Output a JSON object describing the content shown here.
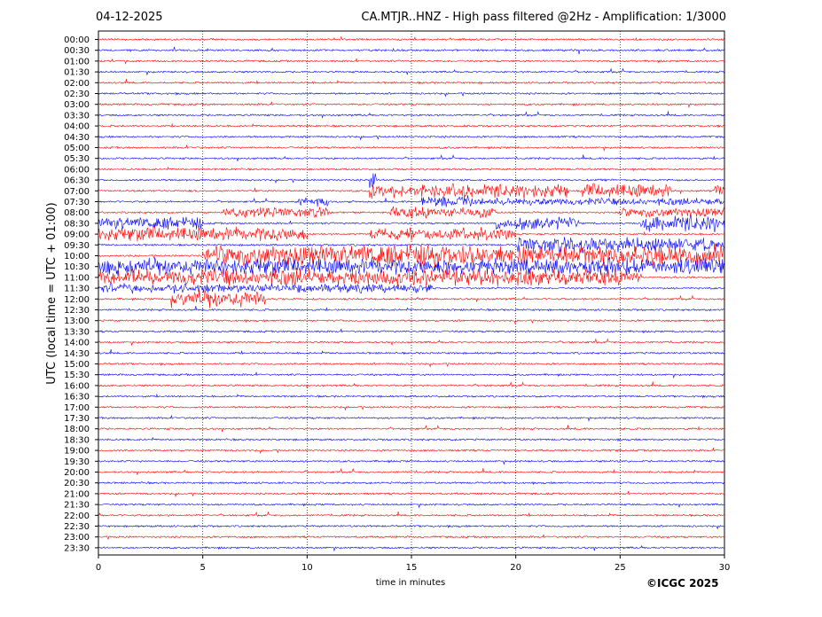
{
  "header": {
    "date": "04-12-2025",
    "title": "CA.MTJR..HNZ - High pass filtered @2Hz - Amplification: 1/3000"
  },
  "footer": {
    "copyright": "©ICGC 2025"
  },
  "colors": {
    "red": "#ff0000",
    "blue": "#0000ff",
    "grid": "#000000"
  },
  "chart_data": {
    "type": "line",
    "xlabel": "time in minutes",
    "ylabel": "UTC (local time = UTC + 01:00)",
    "xlim": [
      0,
      30
    ],
    "xticks": [
      0,
      5,
      10,
      15,
      20,
      25,
      30
    ],
    "grid": "vertical dotted at 5, 10, 15, 20, 25",
    "row_labels": [
      "00:00",
      "00:30",
      "01:00",
      "01:30",
      "02:00",
      "02:30",
      "03:00",
      "03:30",
      "04:00",
      "04:30",
      "05:00",
      "05:30",
      "06:00",
      "06:30",
      "07:00",
      "07:30",
      "08:00",
      "08:30",
      "09:00",
      "09:30",
      "10:00",
      "10:30",
      "11:00",
      "11:30",
      "12:00",
      "12:30",
      "13:00",
      "13:30",
      "14:00",
      "14:30",
      "15:00",
      "15:30",
      "16:00",
      "16:30",
      "17:00",
      "17:30",
      "18:00",
      "18:30",
      "19:00",
      "19:30",
      "20:00",
      "20:30",
      "21:00",
      "21:30",
      "22:00",
      "22:30",
      "23:00",
      "23:30"
    ],
    "row_colors": [
      "red",
      "blue"
    ],
    "amplitude_segments": [
      {
        "row": "06:30",
        "start": 13.0,
        "end": 13.3,
        "level": 0.9
      },
      {
        "row": "07:00",
        "start": 13.0,
        "end": 22.5,
        "level": 0.6
      },
      {
        "row": "07:00",
        "start": 23.2,
        "end": 27.4,
        "level": 0.6
      },
      {
        "row": "07:00",
        "start": 29.5,
        "end": 30.0,
        "level": 0.5
      },
      {
        "row": "07:30",
        "start": 9.5,
        "end": 11.0,
        "level": 0.4
      },
      {
        "row": "07:30",
        "start": 15.5,
        "end": 18.0,
        "level": 0.5
      },
      {
        "row": "07:30",
        "start": 18.0,
        "end": 30.0,
        "level": 0.3
      },
      {
        "row": "08:00",
        "start": 6.0,
        "end": 11.0,
        "level": 0.4
      },
      {
        "row": "08:00",
        "start": 14.0,
        "end": 19.0,
        "level": 0.5
      },
      {
        "row": "08:00",
        "start": 25.0,
        "end": 30.0,
        "level": 0.4
      },
      {
        "row": "08:30",
        "start": 0.0,
        "end": 5.0,
        "level": 0.5
      },
      {
        "row": "08:30",
        "start": 19.0,
        "end": 23.0,
        "level": 0.5
      },
      {
        "row": "08:30",
        "start": 26.0,
        "end": 30.0,
        "level": 0.7
      },
      {
        "row": "09:00",
        "start": 0.0,
        "end": 10.0,
        "level": 0.6
      },
      {
        "row": "09:00",
        "start": 13.0,
        "end": 20.0,
        "level": 0.5
      },
      {
        "row": "09:30",
        "start": 20.0,
        "end": 30.0,
        "level": 0.6
      },
      {
        "row": "10:00",
        "start": 5.0,
        "end": 30.0,
        "level": 0.9
      },
      {
        "row": "10:30",
        "start": 0.0,
        "end": 30.0,
        "level": 0.7
      },
      {
        "row": "11:00",
        "start": 0.0,
        "end": 26.0,
        "level": 0.7
      },
      {
        "row": "11:30",
        "start": 0.0,
        "end": 16.0,
        "level": 0.4
      },
      {
        "row": "12:00",
        "start": 3.5,
        "end": 8.0,
        "level": 0.7
      }
    ]
  }
}
